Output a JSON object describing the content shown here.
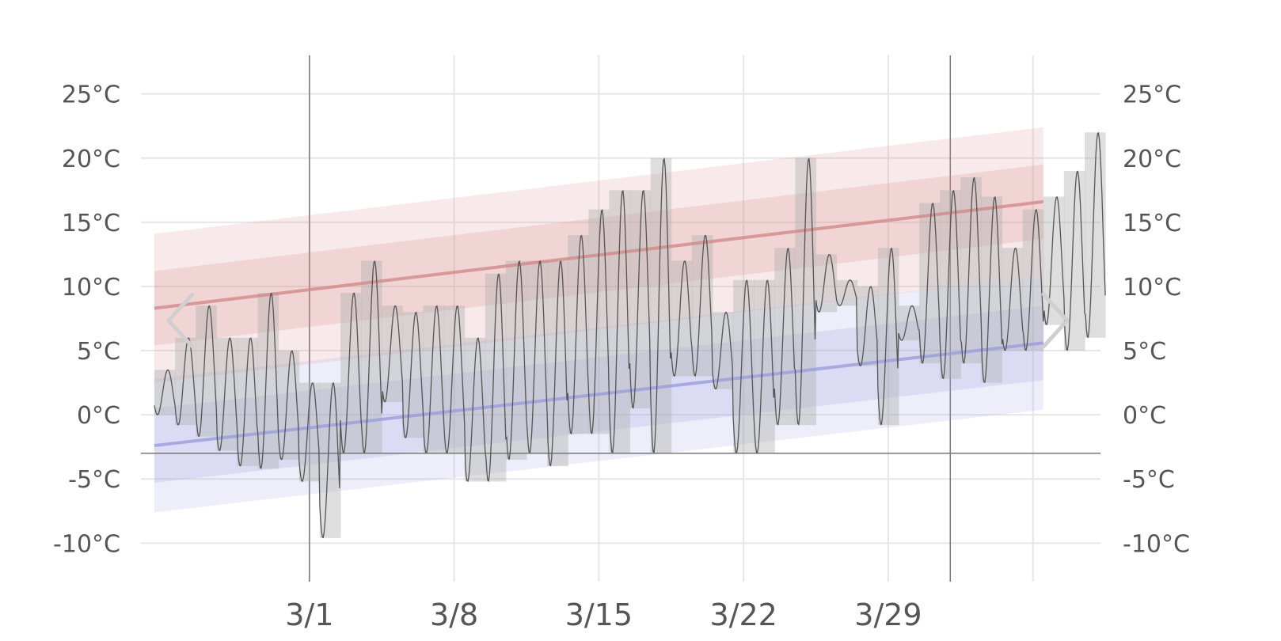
{
  "chart_data": {
    "type": "line",
    "title": "",
    "xlabel": "",
    "ylabel": "",
    "x_range": [
      "2019-02-22",
      "2019-04-05"
    ],
    "ylim": [
      -13,
      28
    ],
    "y_ticks": [
      -10,
      -5,
      0,
      5,
      10,
      15,
      20,
      25
    ],
    "y_tick_labels": [
      "-10°C",
      "-5°C",
      "0°C",
      "5°C",
      "10°C",
      "15°C",
      "20°C",
      "25°C"
    ],
    "x_ticks": [
      "2019-03-01",
      "2019-03-08",
      "2019-03-15",
      "2019-03-22",
      "2019-03-29"
    ],
    "x_tick_labels": [
      "3/1",
      "3/8",
      "3/15",
      "3/22",
      "3/29"
    ],
    "week_gridlines": [
      "2019-03-01",
      "2019-03-08",
      "2019-03-15",
      "2019-03-22",
      "2019-03-29",
      "2019-04-05"
    ],
    "month_boundaries": [
      "2019-03-01",
      "2019-04-01"
    ],
    "freezing_line": -3,
    "grid": true,
    "colors": {
      "high_band": "#d98a8a",
      "high_line": "#d08888",
      "low_band": "#9a9ee0",
      "low_line": "#9a9cdc",
      "daily_range": "#b0b0b0",
      "hourly_line": "#555555",
      "grid": "#e6e6e6",
      "major_grid": "#777777",
      "nav_arrow": "#cfcfcf"
    },
    "series": [
      {
        "role": "average-high",
        "start": [
          0,
          8.3
        ],
        "end": [
          43,
          16.6
        ],
        "inner_band_half_width": 2.9,
        "outer_band_half_width": 5.8
      },
      {
        "role": "average-low",
        "start": [
          0,
          -2.4
        ],
        "end": [
          43,
          5.6
        ],
        "inner_band_half_width": 2.9,
        "outer_band_half_width": 5.2
      },
      {
        "role": "daily-observed-range",
        "daily": [
          [
            0.0,
            3.5
          ],
          [
            -0.8,
            6.0
          ],
          [
            -1.7,
            8.5
          ],
          [
            -2.8,
            6.0
          ],
          [
            -4.0,
            6.0
          ],
          [
            -4.2,
            9.5
          ],
          [
            -3.5,
            5.0
          ],
          [
            -5.2,
            2.5
          ],
          [
            -9.6,
            2.5
          ],
          [
            -3.0,
            9.5
          ],
          [
            -3.0,
            12.0
          ],
          [
            1.0,
            8.5
          ],
          [
            -1.8,
            8.0
          ],
          [
            -3.0,
            8.5
          ],
          [
            -3.0,
            8.5
          ],
          [
            -5.2,
            6.0
          ],
          [
            -5.2,
            11.0
          ],
          [
            -3.5,
            12.0
          ],
          [
            -3.0,
            12.0
          ],
          [
            -4.0,
            12.0
          ],
          [
            -1.5,
            14.0
          ],
          [
            -1.5,
            16.0
          ],
          [
            -3.0,
            17.5
          ],
          [
            0.5,
            17.5
          ],
          [
            -3.0,
            20.0
          ],
          [
            3.0,
            12.0
          ],
          [
            3.0,
            14.0
          ],
          [
            2.0,
            8.0
          ],
          [
            -3.0,
            10.5
          ],
          [
            -3.0,
            10.5
          ],
          [
            -0.8,
            13.0
          ],
          [
            -0.8,
            20.0
          ],
          [
            8.0,
            12.5
          ],
          [
            8.5,
            10.5
          ],
          [
            3.8,
            10.0
          ],
          [
            -0.8,
            13.0
          ],
          [
            5.8,
            8.5
          ],
          [
            4.0,
            16.5
          ],
          [
            2.8,
            17.5
          ],
          [
            4.0,
            18.5
          ],
          [
            2.5,
            17.0
          ],
          [
            5.0,
            13.0
          ],
          [
            5.0,
            16.0
          ],
          [
            7.0,
            17.0
          ],
          [
            5.0,
            19.0
          ],
          [
            6.0,
            22.0
          ]
        ]
      },
      {
        "role": "hourly-observed",
        "daily_min_max": [
          [
            0.0,
            3.5
          ],
          [
            -0.8,
            6.0
          ],
          [
            -1.7,
            8.5
          ],
          [
            -2.8,
            6.0
          ],
          [
            -4.0,
            6.0
          ],
          [
            -4.2,
            9.5
          ],
          [
            -3.5,
            5.0
          ],
          [
            -5.2,
            2.5
          ],
          [
            -9.6,
            2.5
          ],
          [
            -3.0,
            9.5
          ],
          [
            -3.0,
            12.0
          ],
          [
            1.0,
            8.5
          ],
          [
            -1.8,
            8.0
          ],
          [
            -3.0,
            8.5
          ],
          [
            -3.0,
            8.5
          ],
          [
            -5.2,
            6.0
          ],
          [
            -5.2,
            11.0
          ],
          [
            -3.5,
            12.0
          ],
          [
            -3.0,
            12.0
          ],
          [
            -4.0,
            12.0
          ],
          [
            -1.5,
            14.0
          ],
          [
            -1.5,
            16.0
          ],
          [
            -3.0,
            17.5
          ],
          [
            0.5,
            17.5
          ],
          [
            -3.0,
            20.0
          ],
          [
            3.0,
            12.0
          ],
          [
            3.0,
            14.0
          ],
          [
            2.0,
            8.0
          ],
          [
            -3.0,
            10.5
          ],
          [
            -3.0,
            10.5
          ],
          [
            -0.8,
            13.0
          ],
          [
            -0.8,
            20.0
          ],
          [
            8.0,
            12.5
          ],
          [
            8.5,
            10.5
          ],
          [
            3.8,
            10.0
          ],
          [
            -0.8,
            13.0
          ],
          [
            5.8,
            8.5
          ],
          [
            4.0,
            16.5
          ],
          [
            2.8,
            17.5
          ],
          [
            4.0,
            18.5
          ],
          [
            2.5,
            17.0
          ],
          [
            5.0,
            13.0
          ],
          [
            5.0,
            16.0
          ],
          [
            7.0,
            17.0
          ],
          [
            5.0,
            19.0
          ],
          [
            6.0,
            22.0
          ]
        ]
      }
    ]
  },
  "navigation": {
    "prev_icon": "chevron-left-icon",
    "next_icon": "chevron-right-icon"
  }
}
